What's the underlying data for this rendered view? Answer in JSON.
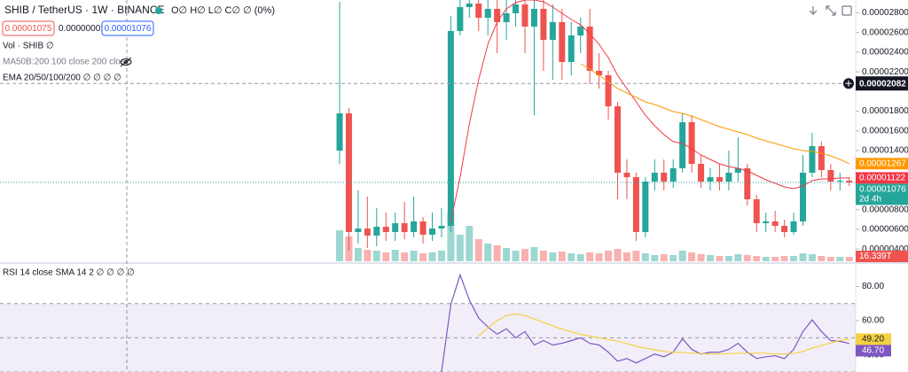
{
  "chart_data": [
    {
      "type": "candlestick",
      "title": "SHIB / TetherUS · 1W · BINANCE",
      "ohlc": "O∅ H∅ L∅ C∅ ∅ (0%)",
      "sell": "0.00001075",
      "spread": "0.00000001",
      "buy": "0.00001076",
      "indicators": [
        "Vol · SHIB  ∅",
        "MA50B:200 100 close 200 close",
        "EMA 20/50/100/200  ∅ ∅ ∅ ∅"
      ],
      "up_color": "#26a69a",
      "down_color": "#ef5350",
      "ylim": [
        2.75e-06,
        2.93e-05
      ],
      "yticks": [
        {
          "value": 2.8e-05,
          "label": "0.00002800"
        },
        {
          "value": 2.6e-05,
          "label": "0.00002600"
        },
        {
          "value": 2.4e-05,
          "label": "0.00002400"
        },
        {
          "value": 2.2e-05,
          "label": "0.00002200"
        },
        {
          "value": 1.8e-05,
          "label": "0.00001800"
        },
        {
          "value": 1.6e-05,
          "label": "0.00001600"
        },
        {
          "value": 1.4e-05,
          "label": "0.00001400"
        },
        {
          "value": 8e-06,
          "label": "0.00000800"
        },
        {
          "value": 6e-06,
          "label": "0.00000600"
        },
        {
          "value": 4e-06,
          "label": "0.00000400"
        }
      ],
      "open": [
        1.4e-05,
        1.778e-05,
        5.72e-06,
        6.08e-06,
        5.36e-06,
        6.26e-06,
        5.72e-06,
        6.62e-06,
        5.72e-06,
        6.8e-06,
        5.45e-06,
        6.08e-06,
        6.35e-06,
        2.615e-05,
        2.858e-05,
        2.894e-05,
        2.75e-05,
        2.84e-05,
        2.705e-05,
        2.795e-05,
        2.885e-05,
        2.66e-05,
        2.84e-05,
        2.525e-05,
        2.705e-05,
        2.3e-05,
        2.57e-05,
        2.66e-05,
        2.21e-05,
        2.165e-05,
        1.85e-05,
        1.175e-05,
        1.13e-05,
        5.72e-06,
        1.085e-05,
        1.175e-05,
        1.085e-05,
        1.22e-05,
        1.688e-05,
        1.265e-05,
        1.085e-05,
        1.13e-05,
        1.085e-05,
        1.175e-05,
        1.22e-05,
        9.05e-06,
        6.62e-06,
        6.8e-06,
        6.35e-06,
        5.72e-06,
        6.8e-06,
        1.175e-05,
        1.445e-05,
        1.202e-05,
        1.085e-05,
        1.094e-05
      ],
      "high": [
        2.912e-05,
        1.832e-05,
        9.95e-06,
        9.32e-06,
        8.15e-06,
        7.7e-06,
        7.7e-06,
        8.78e-06,
        9.32e-06,
        7.25e-06,
        7.7e-06,
        8.15e-06,
        2.768e-05,
        2.93e-05,
        2.93e-05,
        2.93e-05,
        2.93e-05,
        2.93e-05,
        2.93e-05,
        2.93e-05,
        2.93e-05,
        2.93e-05,
        2.93e-05,
        2.885e-05,
        2.84e-05,
        2.705e-05,
        2.75e-05,
        2.84e-05,
        2.39e-05,
        2.21e-05,
        1.895e-05,
        1.31e-05,
        1.175e-05,
        1.13e-05,
        1.31e-05,
        1.31e-05,
        1.31e-05,
        1.778e-05,
        1.76e-05,
        1.355e-05,
        1.22e-05,
        1.265e-05,
        1.4e-05,
        1.535e-05,
        1.265e-05,
        9.5e-06,
        7.7e-06,
        7.88e-06,
        6.98e-06,
        7.7e-06,
        1.355e-05,
        1.58e-05,
        1.49e-05,
        1.265e-05,
        1.175e-05,
        1.13e-05
      ],
      "low": [
        1.265e-05,
        3.83e-06,
        4.55e-06,
        4.1e-06,
        4.28e-06,
        4.82e-06,
        4.82e-06,
        5e-06,
        5.18e-06,
        4.55e-06,
        4.82e-06,
        5.18e-06,
        5.72e-06,
        2.57e-05,
        2.75e-05,
        2.615e-05,
        2.57e-05,
        2.39e-05,
        2.525e-05,
        2.66e-05,
        2.39e-05,
        1.76e-05,
        2.21e-05,
        2.12e-05,
        2.12e-05,
        2.165e-05,
        2.39e-05,
        2.075e-05,
        2.03e-05,
        1.715e-05,
        9.05e-06,
        9.05e-06,
        4.82e-06,
        5.18e-06,
        9.95e-06,
        9.95e-06,
        1.022e-05,
        1.175e-05,
        1.175e-05,
        1.022e-05,
        9.95e-06,
        9.95e-06,
        9.95e-06,
        1.085e-05,
        8.42e-06,
        5.72e-06,
        5.72e-06,
        5.72e-06,
        5.18e-06,
        5.45e-06,
        6.35e-06,
        1.13e-05,
        1.13e-05,
        9.95e-06,
        9.95e-06,
        1.04e-05
      ],
      "close": [
        1.778e-05,
        5.72e-06,
        6.08e-06,
        5.36e-06,
        6.26e-06,
        5.72e-06,
        6.62e-06,
        5.72e-06,
        6.8e-06,
        5.45e-06,
        6.08e-06,
        6.35e-06,
        2.615e-05,
        2.858e-05,
        2.894e-05,
        2.75e-05,
        2.84e-05,
        2.705e-05,
        2.795e-05,
        2.885e-05,
        2.66e-05,
        2.84e-05,
        2.525e-05,
        2.705e-05,
        2.3e-05,
        2.57e-05,
        2.66e-05,
        2.21e-05,
        2.165e-05,
        1.85e-05,
        1.175e-05,
        1.13e-05,
        5.72e-06,
        1.085e-05,
        1.175e-05,
        1.085e-05,
        1.22e-05,
        1.688e-05,
        1.265e-05,
        1.085e-05,
        1.13e-05,
        1.085e-05,
        1.175e-05,
        1.22e-05,
        9.05e-06,
        6.62e-06,
        6.8e-06,
        6.35e-06,
        5.72e-06,
        6.8e-06,
        1.175e-05,
        1.445e-05,
        1.202e-05,
        1.085e-05,
        1.094e-05,
        1.076e-05
      ],
      "volume": [
        114.4,
        91.5,
        49.0,
        42.5,
        39.2,
        32.7,
        42.5,
        32.7,
        39.2,
        29.4,
        32.7,
        39.2,
        179.7,
        98.0,
        130.7,
        81.7,
        65.4,
        58.8,
        49.0,
        39.2,
        45.7,
        52.3,
        39.2,
        32.7,
        35.9,
        29.4,
        26.1,
        32.7,
        29.4,
        39.2,
        45.7,
        32.7,
        39.2,
        29.4,
        22.9,
        26.1,
        22.9,
        39.2,
        32.7,
        26.1,
        22.9,
        19.6,
        19.6,
        26.1,
        22.9,
        19.6,
        16.3,
        16.3,
        19.6,
        19.6,
        29.4,
        26.1,
        19.6,
        16.3,
        16.3,
        16.339
      ],
      "volume_last_label": "16.339T",
      "ema_lines": [
        {
          "color": "#f23645",
          "values": [
            null,
            null,
            null,
            null,
            null,
            null,
            null,
            null,
            null,
            null,
            null,
            null,
            6.8e-06,
            1.13e-05,
            1.67e-05,
            2.12e-05,
            2.48e-05,
            2.705e-05,
            2.84e-05,
            2.903e-05,
            2.93e-05,
            2.93e-05,
            2.912e-05,
            2.858e-05,
            2.795e-05,
            2.732e-05,
            2.678e-05,
            2.588e-05,
            2.48e-05,
            2.345e-05,
            2.165e-05,
            2.03e-05,
            1.895e-05,
            1.76e-05,
            1.652e-05,
            1.562e-05,
            1.49e-05,
            1.472e-05,
            1.418e-05,
            1.355e-05,
            1.31e-05,
            1.265e-05,
            1.238e-05,
            1.22e-05,
            1.193e-05,
            1.148e-05,
            1.103e-05,
            1.067e-05,
            1.031e-05,
            1.013e-05,
            1.04e-05,
            1.094e-05,
            1.112e-05,
            1.112e-05,
            1.121e-05,
            1.122e-05
          ]
        },
        {
          "color": "#ff9800",
          "values": [
            null,
            null,
            null,
            null,
            null,
            null,
            null,
            null,
            null,
            null,
            null,
            null,
            null,
            null,
            null,
            null,
            null,
            null,
            null,
            null,
            null,
            null,
            null,
            null,
            null,
            null,
            2.282e-05,
            2.228e-05,
            2.165e-05,
            2.102e-05,
            2.03e-05,
            1.985e-05,
            1.94e-05,
            1.895e-05,
            1.868e-05,
            1.832e-05,
            1.796e-05,
            1.778e-05,
            1.751e-05,
            1.715e-05,
            1.679e-05,
            1.643e-05,
            1.616e-05,
            1.589e-05,
            1.562e-05,
            1.526e-05,
            1.499e-05,
            1.472e-05,
            1.445e-05,
            1.418e-05,
            1.4e-05,
            1.391e-05,
            1.373e-05,
            1.346e-05,
            1.31e-05,
            1.267e-05
          ]
        }
      ],
      "price_labels": [
        {
          "value": 1.267e-05,
          "label": "0.00001267",
          "color": "#ff9800"
        },
        {
          "value": 1.122e-05,
          "label": "0.00001122",
          "color": "#f23645"
        },
        {
          "value": 1.076e-05,
          "label": "0.00001076",
          "sub": "2d 4h",
          "color": "#26a69a"
        }
      ],
      "crosshair": {
        "value": 2.082e-05,
        "label": "0.00002082"
      }
    },
    {
      "type": "line",
      "title": "RSI 14 close SMA 14 2  ∅ ∅ ∅ ∅",
      "ylim": [
        30,
        93.2
      ],
      "yticks": [
        {
          "value": 80,
          "label": "80.00"
        },
        {
          "value": 60,
          "label": "60.00"
        },
        {
          "value": 40,
          "label": "40.00"
        }
      ],
      "levels": [
        70,
        50,
        30
      ],
      "band": [
        30,
        70
      ],
      "series": [
        {
          "color": "#7e57c2",
          "last_label": "46.70",
          "values": [
            null,
            null,
            null,
            null,
            null,
            null,
            null,
            null,
            null,
            null,
            24.7,
            30,
            69.5,
            86.8,
            72.1,
            61.6,
            56.3,
            52.1,
            55.3,
            50,
            53.7,
            45.8,
            48.4,
            45.8,
            46.8,
            48.4,
            50,
            46.8,
            45.8,
            41.6,
            36.3,
            37.9,
            35.3,
            37.9,
            40.5,
            38.9,
            41.6,
            49.5,
            43.2,
            40.5,
            41.6,
            41.6,
            43.2,
            46.8,
            41.6,
            37.9,
            38.9,
            39.5,
            37.9,
            43.2,
            53.7,
            60.5,
            53.7,
            48.4,
            47.9,
            46.7
          ]
        },
        {
          "color": "#f5d142",
          "last_label": "49.20",
          "values": [
            null,
            null,
            null,
            null,
            null,
            null,
            null,
            null,
            null,
            null,
            null,
            null,
            null,
            null,
            null,
            51,
            56,
            60,
            63,
            64,
            63,
            61,
            59,
            57,
            55,
            53.5,
            52,
            51,
            50,
            49,
            48,
            46.5,
            45,
            44,
            43,
            42,
            41.5,
            41.5,
            41,
            40.8,
            40.5,
            40.5,
            40.8,
            41,
            41,
            41,
            41,
            40.5,
            40.5,
            40.8,
            42,
            44,
            45.5,
            47,
            48.5,
            49.2
          ]
        }
      ]
    }
  ]
}
